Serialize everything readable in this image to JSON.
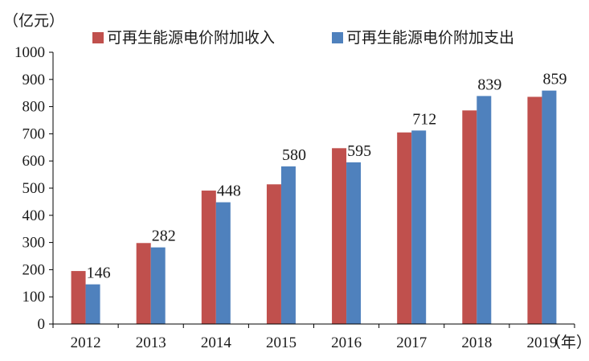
{
  "chart_data": {
    "type": "bar",
    "y_unit": "（亿元）",
    "x_unit": "（年）",
    "categories": [
      "2012",
      "2013",
      "2014",
      "2015",
      "2016",
      "2017",
      "2018",
      "2019"
    ],
    "ylim": [
      0,
      1000
    ],
    "yticks": [
      "0",
      "100",
      "200",
      "300",
      "400",
      "500",
      "600",
      "700",
      "800",
      "900",
      "1000"
    ],
    "grid": false,
    "legend_position": "top",
    "series": [
      {
        "name": "可再生能源电价附加收入",
        "color": "#C0504D",
        "values": [
          195,
          298,
          491,
          514,
          647,
          705,
          786,
          836
        ],
        "labels": [
          "",
          "",
          "",
          "",
          "",
          "",
          "",
          ""
        ]
      },
      {
        "name": "可再生能源电价附加支出",
        "color": "#4F81BD",
        "values": [
          146,
          282,
          448,
          580,
          595,
          712,
          839,
          859
        ],
        "labels": [
          "146",
          "282",
          "448",
          "580",
          "595",
          "712",
          "839",
          "859"
        ]
      }
    ]
  }
}
